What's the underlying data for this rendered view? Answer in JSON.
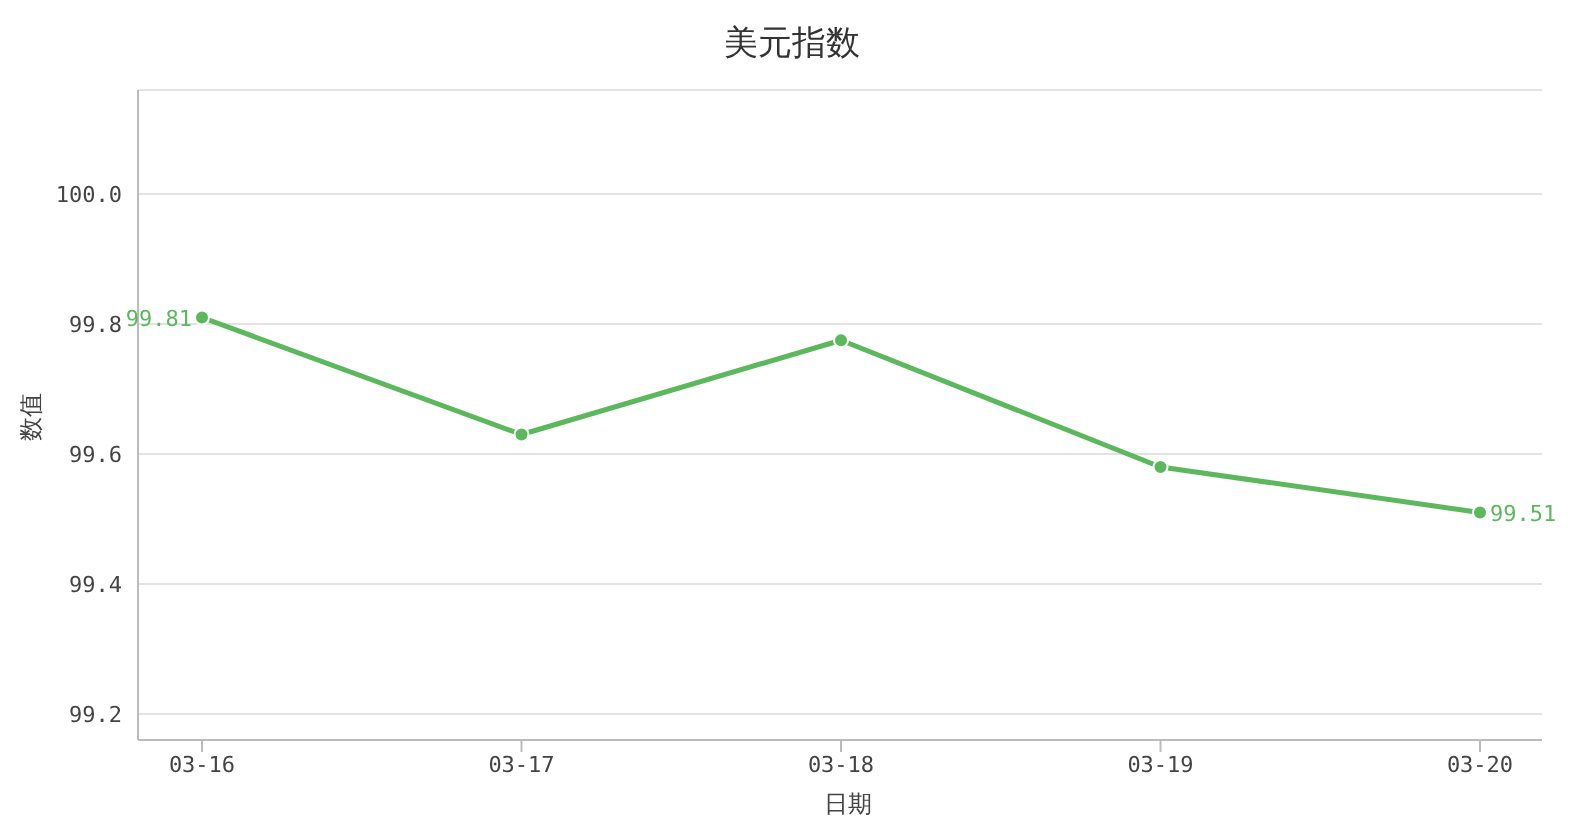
{
  "chart_data": {
    "type": "line",
    "title": "美元指数",
    "xlabel": "日期",
    "ylabel": "数值",
    "categories": [
      "03-16",
      "03-17",
      "03-18",
      "03-19",
      "03-20"
    ],
    "series": [
      {
        "color": "#5cb85c",
        "values": [
          99.81,
          99.63,
          99.775,
          99.58,
          99.51
        ],
        "value_labels": [
          "99.81",
          null,
          null,
          null,
          "99.51"
        ]
      }
    ],
    "ylim": [
      99.16,
      100.16
    ],
    "yticks": [
      {
        "value": 99.2,
        "label": "99.2"
      },
      {
        "value": 99.4,
        "label": "99.4"
      },
      {
        "value": 99.6,
        "label": "99.6"
      },
      {
        "value": 99.8,
        "label": "99.8"
      },
      {
        "value": 100,
        "label": "100.0"
      }
    ],
    "grid": "y",
    "marker": "circle",
    "line_style": "solid",
    "legend": false
  }
}
